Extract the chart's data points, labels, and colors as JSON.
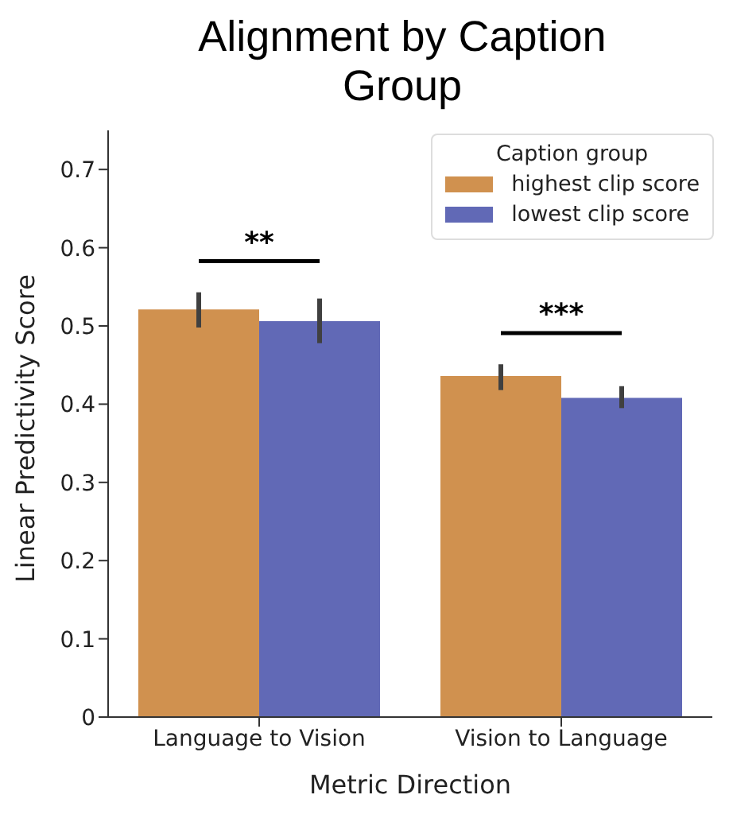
{
  "chart_data": {
    "type": "bar",
    "title": "Alignment by Caption Group",
    "xlabel": "Metric Direction",
    "ylabel": "Linear Predictivity Score",
    "legend_title": "Caption group",
    "categories": [
      "Language to Vision",
      "Vision to Language"
    ],
    "series": [
      {
        "name": "highest clip score",
        "color": "#d0914f",
        "values": [
          0.521,
          0.436
        ],
        "errors": [
          [
            0.498,
            0.543
          ],
          [
            0.418,
            0.451
          ]
        ]
      },
      {
        "name": "lowest clip score",
        "color": "#6169b6",
        "values": [
          0.506,
          0.408
        ],
        "errors": [
          [
            0.478,
            0.535
          ],
          [
            0.395,
            0.423
          ]
        ]
      }
    ],
    "ylim": [
      0,
      0.75
    ],
    "yticks": [
      0,
      0.1,
      0.2,
      0.3,
      0.4,
      0.5,
      0.6,
      0.7
    ],
    "grid": false,
    "legend": "top right",
    "annotations": [
      "**",
      "***"
    ]
  }
}
